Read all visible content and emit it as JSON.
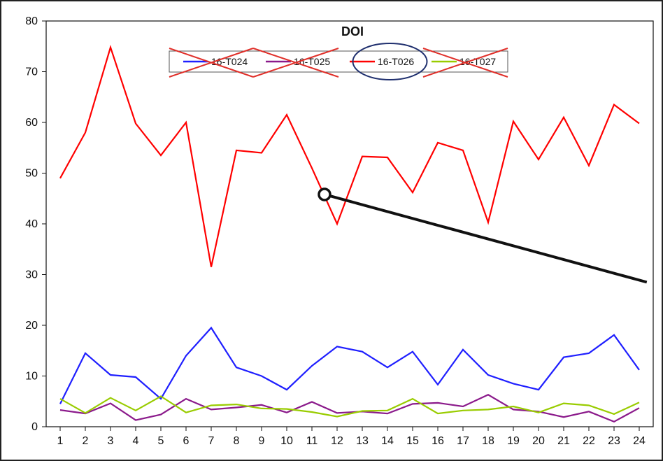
{
  "chart_data": {
    "type": "line",
    "title": "DOI",
    "xlabel": "",
    "ylabel": "",
    "ylim": [
      0,
      80
    ],
    "yticks": [
      0,
      10,
      20,
      30,
      40,
      50,
      60,
      70,
      80
    ],
    "grid": false,
    "legend_position": "top-center",
    "categories": [
      "1",
      "2",
      "3",
      "4",
      "5",
      "6",
      "7",
      "8",
      "9",
      "10",
      "11",
      "12",
      "13",
      "14",
      "15",
      "16",
      "17",
      "18",
      "19",
      "20",
      "21",
      "22",
      "23",
      "24"
    ],
    "series": [
      {
        "name": "16-T024",
        "color": "#1f1fff",
        "crossed_out": true,
        "values": [
          4.5,
          14.5,
          10.2,
          9.8,
          5.5,
          14.0,
          19.5,
          11.7,
          10.0,
          7.3,
          12.0,
          15.8,
          14.8,
          11.7,
          14.8,
          8.3,
          15.2,
          10.2,
          8.5,
          7.3,
          13.7,
          14.5,
          18.1,
          11.2
        ]
      },
      {
        "name": "16-T025",
        "color": "#8b1a8b",
        "crossed_out": true,
        "values": [
          3.3,
          2.6,
          4.6,
          1.3,
          2.4,
          5.5,
          3.4,
          3.8,
          4.3,
          2.8,
          4.9,
          2.7,
          3.0,
          2.6,
          4.5,
          4.7,
          4.0,
          6.3,
          3.4,
          3.0,
          1.9,
          3.0,
          1.0,
          3.7
        ]
      },
      {
        "name": "16-T026",
        "color": "#ff0000",
        "circled": true,
        "values": [
          49.0,
          58.0,
          74.8,
          59.8,
          53.5,
          60.0,
          31.5,
          54.5,
          54.0,
          61.5,
          51.0,
          40.0,
          53.3,
          53.1,
          46.2,
          56.0,
          54.5,
          40.3,
          60.2,
          52.7,
          61.0,
          51.5,
          63.5,
          59.8
        ]
      },
      {
        "name": "16-T027",
        "color": "#99cc00",
        "crossed_out": true,
        "values": [
          5.5,
          2.7,
          5.7,
          3.2,
          6.0,
          2.8,
          4.2,
          4.4,
          3.6,
          3.5,
          2.9,
          2.0,
          3.1,
          3.2,
          5.5,
          2.6,
          3.2,
          3.4,
          4.0,
          2.8,
          4.6,
          4.2,
          2.5,
          4.8
        ]
      }
    ],
    "annotation_marker": {
      "x": 11.5,
      "y": 45.8
    },
    "annotation_line_end": {
      "x": 24.3,
      "y": 28.5
    }
  }
}
